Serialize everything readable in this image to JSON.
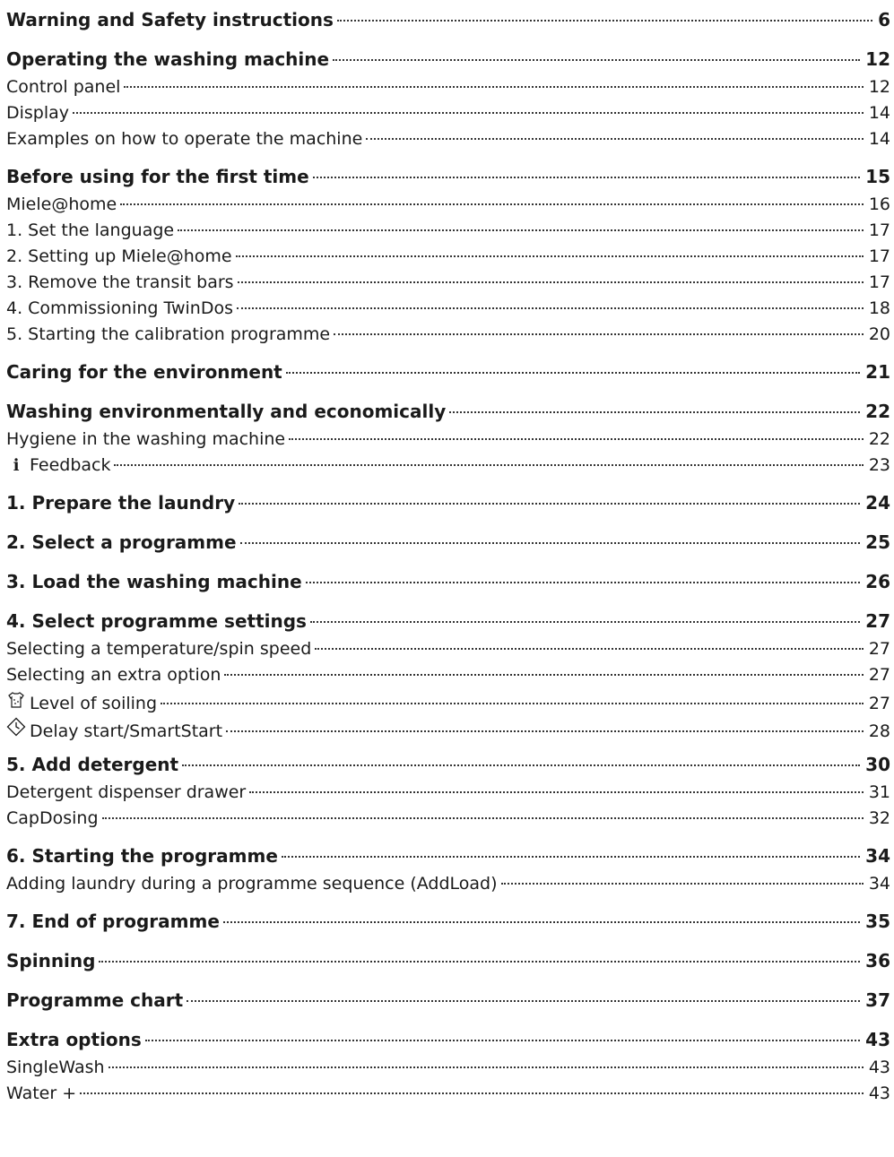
{
  "entries": [
    {
      "label": "Warning and Safety instructions",
      "page": "6",
      "level": "main"
    },
    {
      "label": "Operating the washing machine",
      "page": "12",
      "level": "main"
    },
    {
      "label": "Control panel",
      "page": "12",
      "level": "sub"
    },
    {
      "label": "Display",
      "page": "14",
      "level": "sub"
    },
    {
      "label": "Examples on how to operate the machine",
      "page": "14",
      "level": "sub"
    },
    {
      "label": "Before using for the first time",
      "page": "15",
      "level": "main"
    },
    {
      "label": "Miele@home",
      "page": "16",
      "level": "sub"
    },
    {
      "label": "1. Set the language",
      "page": "17",
      "level": "sub"
    },
    {
      "label": "2. Setting up Miele@home",
      "page": "17",
      "level": "sub"
    },
    {
      "label": "3. Remove the transit bars",
      "page": "17",
      "level": "sub"
    },
    {
      "label": "4. Commissioning TwinDos",
      "page": "18",
      "level": "sub"
    },
    {
      "label": "5. Starting the calibration programme",
      "page": "20",
      "level": "sub"
    },
    {
      "label": "Caring for the environment",
      "page": "21",
      "level": "main"
    },
    {
      "label": "Washing environmentally and economically",
      "page": "22",
      "level": "main"
    },
    {
      "label": "Hygiene in the washing machine",
      "page": "22",
      "level": "sub"
    },
    {
      "label": "Feedback",
      "page": "23",
      "level": "sub",
      "icon": "info-feedback-icon",
      "glyph": "ℹ"
    },
    {
      "label": "1. Prepare the laundry",
      "page": "24",
      "level": "main"
    },
    {
      "label": "2. Select a programme",
      "page": "25",
      "level": "main"
    },
    {
      "label": "3. Load the washing machine",
      "page": "26",
      "level": "main"
    },
    {
      "label": "4. Select programme settings",
      "page": "27",
      "level": "main"
    },
    {
      "label": "Selecting a temperature/spin speed",
      "page": "27",
      "level": "sub"
    },
    {
      "label": "Selecting an extra option",
      "page": "27",
      "level": "sub"
    },
    {
      "label": "Level of soiling",
      "page": "27",
      "level": "sub",
      "icon": "soiled-shirt-icon",
      "glyph": "👕"
    },
    {
      "label": "Delay start/SmartStart",
      "page": "28",
      "level": "sub",
      "icon": "delay-start-icon",
      "glyph": "◇"
    },
    {
      "label": "5. Add detergent",
      "page": "30",
      "level": "main"
    },
    {
      "label": "Detergent dispenser drawer",
      "page": "31",
      "level": "sub"
    },
    {
      "label": "CapDosing",
      "page": "32",
      "level": "sub"
    },
    {
      "label": "6. Starting the programme",
      "page": "34",
      "level": "main"
    },
    {
      "label": "Adding laundry during a programme sequence (AddLoad)",
      "page": "34",
      "level": "sub"
    },
    {
      "label": "7. End of programme",
      "page": "35",
      "level": "main"
    },
    {
      "label": "Spinning",
      "page": "36",
      "level": "main"
    },
    {
      "label": "Programme chart",
      "page": "37",
      "level": "main"
    },
    {
      "label": "Extra options",
      "page": "43",
      "level": "main"
    },
    {
      "label": "SingleWash",
      "page": "43",
      "level": "sub"
    },
    {
      "label": "Water +",
      "page": "43",
      "level": "sub"
    }
  ]
}
